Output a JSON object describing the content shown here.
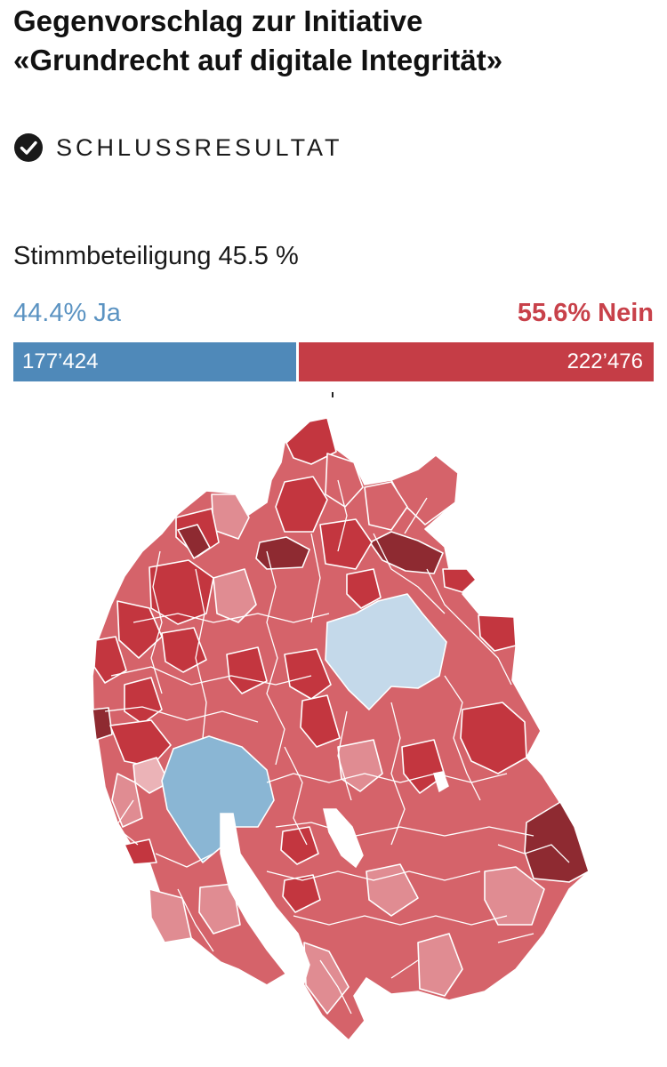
{
  "title": {
    "line1": "Gegenvorschlag zur Initiative",
    "line2": "«Grundrecht auf digitale Integrität»"
  },
  "status": {
    "icon": "check-circle-icon",
    "label": "SCHLUSSRESULTAT"
  },
  "turnout": {
    "label": "Stimmbeteiligung",
    "value": "45.5 %"
  },
  "result": {
    "yes": {
      "percent": "44.4%",
      "label": "Ja",
      "votes": "177’424",
      "share": 0.444,
      "color": "#4f89b9"
    },
    "no": {
      "percent": "55.6%",
      "label": "Nein",
      "votes": "222’476",
      "share": 0.556,
      "color": "#c53d46"
    }
  },
  "map": {
    "region": "Kanton Zürich",
    "colors": {
      "no_strong": "#8e2a31",
      "no_high": "#c3363f",
      "no_medium": "#d5636a",
      "no_light": "#e08c92",
      "no_faint": "#ebb3b7",
      "yes_light": "#c4d9ea",
      "yes_medium": "#8ab6d4",
      "lake": "#ffffff",
      "border": "#ffffff"
    }
  }
}
